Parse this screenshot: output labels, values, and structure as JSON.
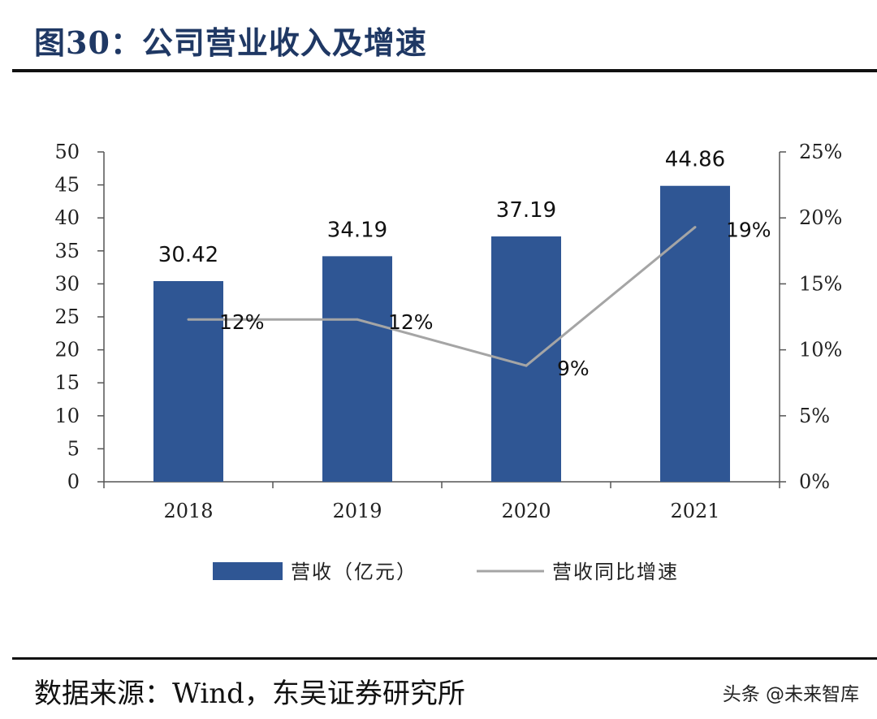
{
  "header": {
    "title": "图30：公司营业收入及增速"
  },
  "footer": {
    "source": "数据来源：Wind，东吴证券研究所",
    "watermark": "头条 @未来智库"
  },
  "colors": {
    "bar": "#2f5694",
    "line": "#a5a5a5",
    "title": "#1f3864"
  },
  "chart_data": {
    "type": "bar",
    "categories": [
      "2018",
      "2019",
      "2020",
      "2021"
    ],
    "series": [
      {
        "name": "营收（亿元）",
        "type": "bar",
        "axis": "left",
        "values": [
          30.42,
          34.19,
          37.19,
          44.86
        ],
        "labels": [
          "30.42",
          "34.19",
          "37.19",
          "44.86"
        ]
      },
      {
        "name": "营收同比增速",
        "type": "line",
        "axis": "right",
        "values": [
          12.3,
          12.3,
          8.8,
          19.3
        ],
        "labels": [
          "12%",
          "12%",
          "9%",
          "19%"
        ]
      }
    ],
    "ylim_left": [
      0,
      50
    ],
    "yticks_left": [
      "0",
      "5",
      "10",
      "15",
      "20",
      "25",
      "30",
      "35",
      "40",
      "45",
      "50"
    ],
    "ylim_right": [
      0,
      25
    ],
    "yticks_right": [
      "0%",
      "5%",
      "10%",
      "15%",
      "20%",
      "25%"
    ],
    "legend_position": "bottom",
    "grid": false
  }
}
